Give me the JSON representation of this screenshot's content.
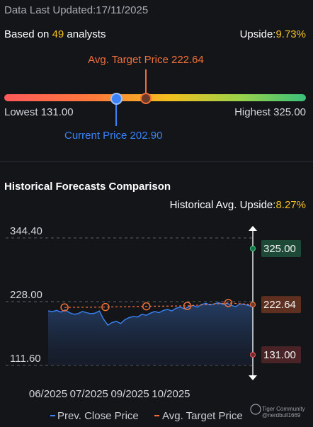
{
  "header": {
    "updated": "Data Last Updated:17/11/2025",
    "based_prefix": "Based on ",
    "analyst_count": "49",
    "based_suffix": " analysts",
    "upside_label": "Upside:",
    "upside_value": "9.73%"
  },
  "target": {
    "avg_label": "Avg. Target Price 222.64",
    "lowest_label": "Lowest 131.00",
    "highest_label": "Highest 325.00",
    "current_label": "Current Price 202.90",
    "colors": {
      "avg": "#f0703a",
      "current": "#3b82f6"
    }
  },
  "history": {
    "title": "Historical Forecasts Comparison",
    "upside_label": "Historical Avg. Upside:",
    "upside_value": "8.27%"
  },
  "watermark": {
    "brand": "Tiger Community",
    "user": "@nerdbull1669"
  },
  "chart_data": {
    "type": "line",
    "ylim": [
      111.6,
      344.4
    ],
    "y_ticks": [
      "344.40",
      "228.00",
      "111.60"
    ],
    "x_ticks": [
      "06/2025",
      "07/2025",
      "09/2025",
      "10/2025"
    ],
    "legend": [
      "Prev. Close Price",
      "Avg. Target Price"
    ],
    "legend_position": "bottom",
    "colors": {
      "close": "#3b82f6",
      "target": "#f0703a",
      "high": "#39c17a",
      "low": "#e05555"
    },
    "close_series": [
      211,
      210,
      212,
      209,
      213,
      208,
      205,
      206,
      210,
      208,
      206,
      207,
      211,
      196,
      185,
      190,
      192,
      188,
      195,
      199,
      201,
      200,
      205,
      203,
      207,
      210,
      208,
      212,
      214,
      211,
      216,
      218,
      215,
      219,
      221,
      218,
      223,
      225,
      222,
      224,
      226,
      223,
      225,
      221,
      219,
      224,
      223,
      221,
      218
    ],
    "target_series": [
      {
        "month": 0.4,
        "value": 217.5
      },
      {
        "month": 1.4,
        "value": 218.2
      },
      {
        "month": 2.4,
        "value": 219.5
      },
      {
        "month": 3.4,
        "value": 220.2
      },
      {
        "month": 4.4,
        "value": 225.5
      },
      {
        "month": 5.0,
        "value": 222.64
      }
    ],
    "month_ticks": [
      0,
      1,
      2,
      3
    ],
    "month_range": [
      0,
      5.0
    ],
    "forecast": {
      "high": "325.00",
      "avg": "222.64",
      "low": "131.00",
      "high_value": 325.0,
      "avg_value": 222.64,
      "low_value": 131.0
    }
  }
}
